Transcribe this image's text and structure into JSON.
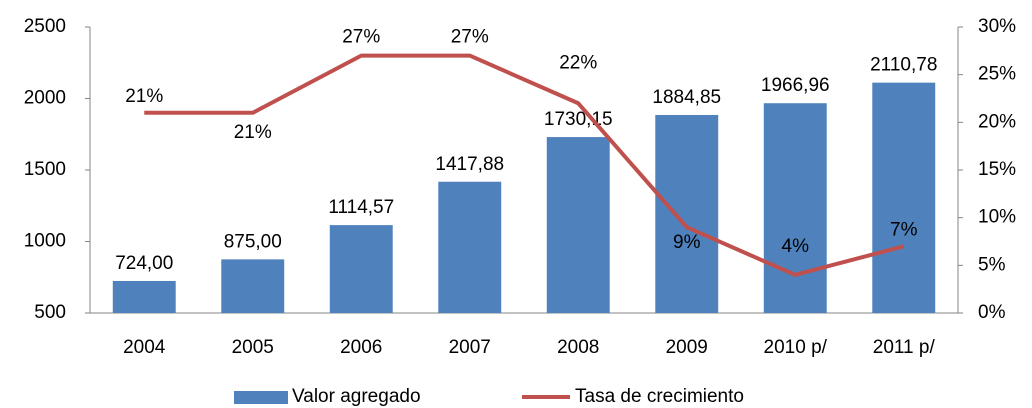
{
  "chart_data": {
    "type": "bar",
    "categories": [
      "2004",
      "2005",
      "2006",
      "2007",
      "2008",
      "2009",
      "2010 p/",
      "2011 p/"
    ],
    "series": [
      {
        "name": "Valor agregado",
        "type": "bar",
        "color": "#4f81bd",
        "values": [
          724,
          875,
          1114.57,
          1417.88,
          1730.15,
          1884.85,
          1966.96,
          2110.78
        ],
        "value_labels": [
          "724,00",
          "875,00",
          "1114,57",
          "1417,88",
          "1730,15",
          "1884,85",
          "1966,96",
          "2110,78"
        ]
      },
      {
        "name": "Tasa de crecimiento",
        "type": "line",
        "axis": "y2",
        "color": "#c0504d",
        "values": [
          21,
          21,
          27,
          27,
          22,
          9,
          4,
          7
        ],
        "value_labels": [
          "21%",
          "21%",
          "27%",
          "27%",
          "22%",
          "9%",
          "4%",
          "7%"
        ]
      }
    ],
    "ylim": [
      500,
      2500
    ],
    "yticks": [
      500,
      1000,
      1500,
      2000,
      2500
    ],
    "y2lim": [
      0,
      30
    ],
    "y2ticks": [
      {
        "value": 0,
        "label": "0%"
      },
      {
        "value": 5,
        "label": "5%"
      },
      {
        "value": 10,
        "label": "10%"
      },
      {
        "value": 15,
        "label": "15%"
      },
      {
        "value": 20,
        "label": "20%"
      },
      {
        "value": 25,
        "label": "25%"
      },
      {
        "value": 30,
        "label": "30%"
      }
    ],
    "grid": false,
    "legend": "bottom"
  }
}
